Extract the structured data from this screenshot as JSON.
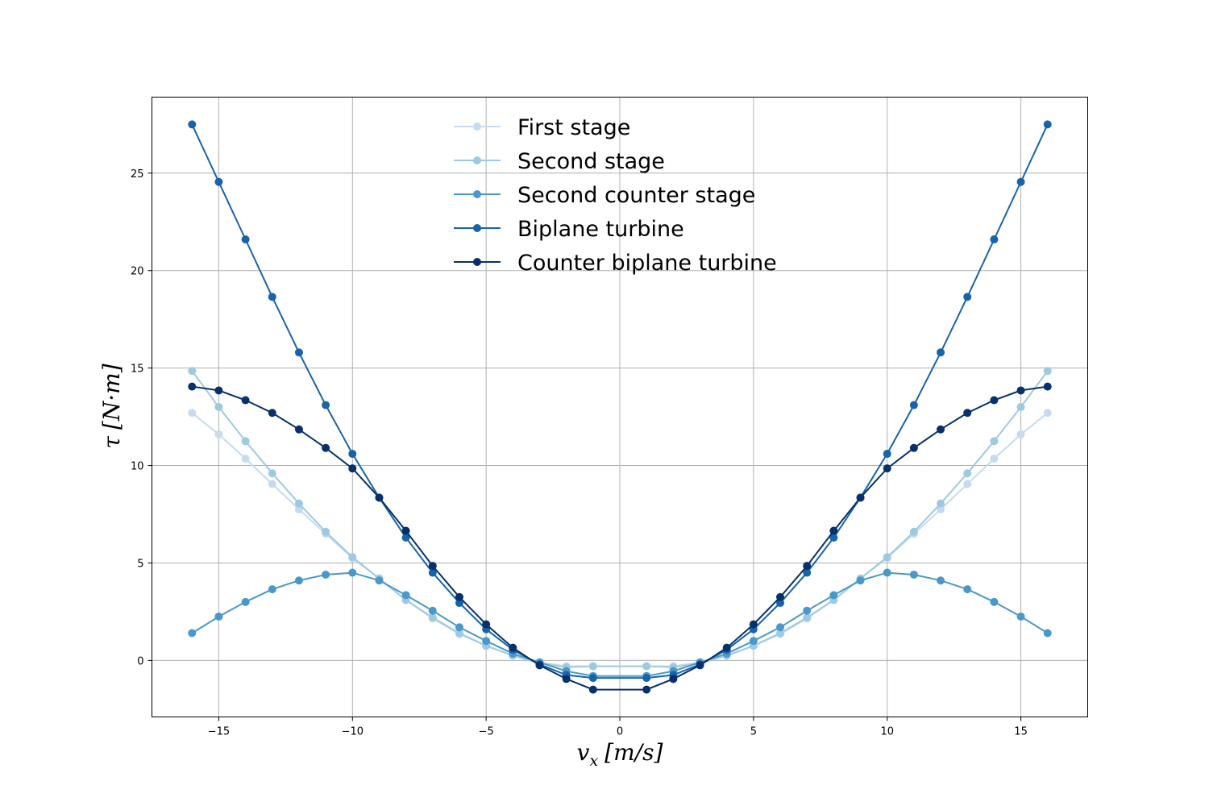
{
  "chart_data": {
    "type": "line",
    "title": "",
    "xlabel_main": "v",
    "xlabel_sub": "x",
    "xlabel_unit": "[m/s]",
    "ylabel_main": "τ",
    "ylabel_unit": "[N·m]",
    "xlim": [
      -17.5,
      17.5
    ],
    "ylim": [
      -2.9,
      28.9
    ],
    "xticks": [
      -15,
      -10,
      -5,
      0,
      5,
      10,
      15
    ],
    "xtick_labels": [
      "−15",
      "−10",
      "−5",
      "0",
      "5",
      "10",
      "15"
    ],
    "yticks": [
      0,
      5,
      10,
      15,
      20,
      25
    ],
    "ytick_labels": [
      "0",
      "5",
      "10",
      "15",
      "20",
      "25"
    ],
    "grid": true,
    "legend_position": "top-center",
    "x": [
      -16,
      -15,
      -14,
      -13,
      -12,
      -11,
      -10,
      -9,
      -8,
      -7,
      -6,
      -5,
      -4,
      -3,
      -2,
      -1,
      1,
      2,
      3,
      4,
      5,
      6,
      7,
      8,
      9,
      10,
      11,
      12,
      13,
      14,
      15,
      16
    ],
    "series": [
      {
        "name": "First stage",
        "color": "#c6dbef",
        "values": [
          12.7,
          11.6,
          10.35,
          9.05,
          7.75,
          6.5,
          5.25,
          4.2,
          3.1,
          2.15,
          1.35,
          0.75,
          0.25,
          -0.1,
          -0.3,
          -0.3,
          -0.3,
          -0.3,
          -0.1,
          0.25,
          0.75,
          1.35,
          2.15,
          3.1,
          4.2,
          5.25,
          6.5,
          7.75,
          9.05,
          10.35,
          11.6,
          12.7
        ]
      },
      {
        "name": "Second stage",
        "color": "#9ecae1",
        "values": [
          14.85,
          13.0,
          11.25,
          9.6,
          8.05,
          6.6,
          5.3,
          4.2,
          3.1,
          2.2,
          1.4,
          0.75,
          0.25,
          -0.15,
          -0.35,
          -0.3,
          -0.3,
          -0.35,
          -0.15,
          0.25,
          0.75,
          1.4,
          2.2,
          3.1,
          4.2,
          5.3,
          6.6,
          8.05,
          9.6,
          11.25,
          13.0,
          14.85
        ]
      },
      {
        "name": "Second counter stage",
        "color": "#4a98c9",
        "values": [
          1.4,
          2.25,
          3.0,
          3.65,
          4.1,
          4.4,
          4.5,
          4.1,
          3.35,
          2.55,
          1.7,
          1.0,
          0.35,
          -0.1,
          -0.55,
          -0.8,
          -0.8,
          -0.55,
          -0.1,
          0.35,
          1.0,
          1.7,
          2.55,
          3.35,
          4.1,
          4.5,
          4.4,
          4.1,
          3.65,
          3.0,
          2.25,
          1.4
        ]
      },
      {
        "name": "Biplane turbine",
        "color": "#1764ab",
        "values": [
          27.5,
          24.55,
          21.6,
          18.65,
          15.8,
          13.1,
          10.6,
          8.35,
          6.3,
          4.5,
          2.95,
          1.6,
          0.55,
          -0.2,
          -0.75,
          -0.9,
          -0.9,
          -0.75,
          -0.2,
          0.55,
          1.6,
          2.95,
          4.5,
          6.3,
          8.35,
          10.6,
          13.1,
          15.8,
          18.65,
          21.6,
          24.55,
          27.5
        ]
      },
      {
        "name": "Counter biplane turbine",
        "color": "#08306b",
        "values": [
          14.05,
          13.85,
          13.35,
          12.7,
          11.85,
          10.9,
          9.85,
          8.35,
          6.65,
          4.85,
          3.25,
          1.85,
          0.65,
          -0.25,
          -0.95,
          -1.5,
          -1.5,
          -0.95,
          -0.25,
          0.65,
          1.85,
          3.25,
          4.85,
          6.65,
          8.35,
          9.85,
          10.9,
          11.85,
          12.7,
          13.35,
          13.85,
          14.05
        ]
      }
    ]
  }
}
